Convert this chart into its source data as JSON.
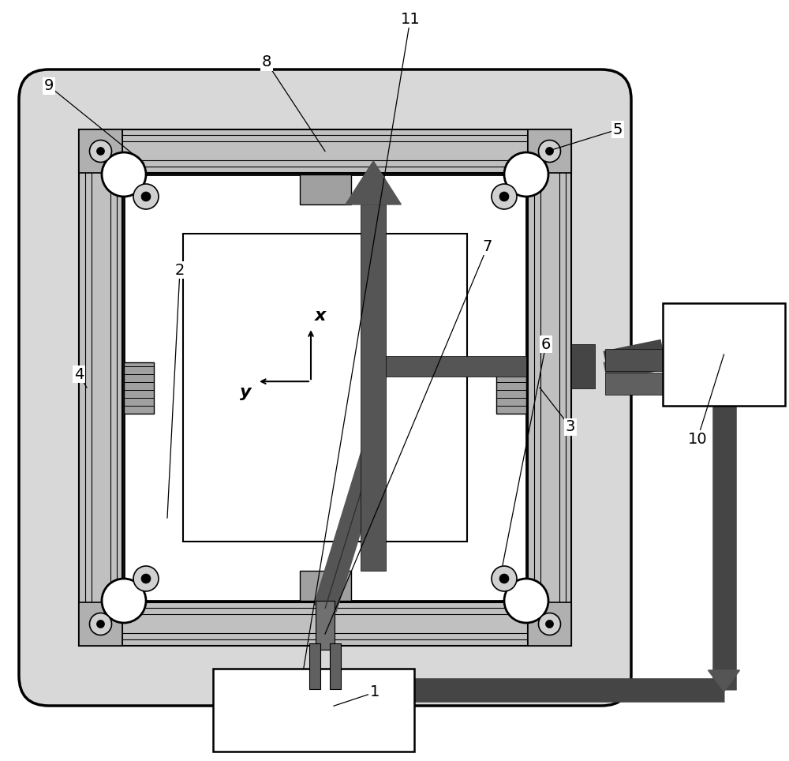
{
  "bg_color": "#ffffff",
  "lc": "#000000",
  "dark_gray": "#555555",
  "mid_gray": "#909090",
  "light_gray": "#c8c8c8",
  "rail_gray": "#b0b0b0",
  "plate_gray": "#d8d8d8",
  "figsize": [
    10.0,
    9.64
  ],
  "dpi": 100
}
